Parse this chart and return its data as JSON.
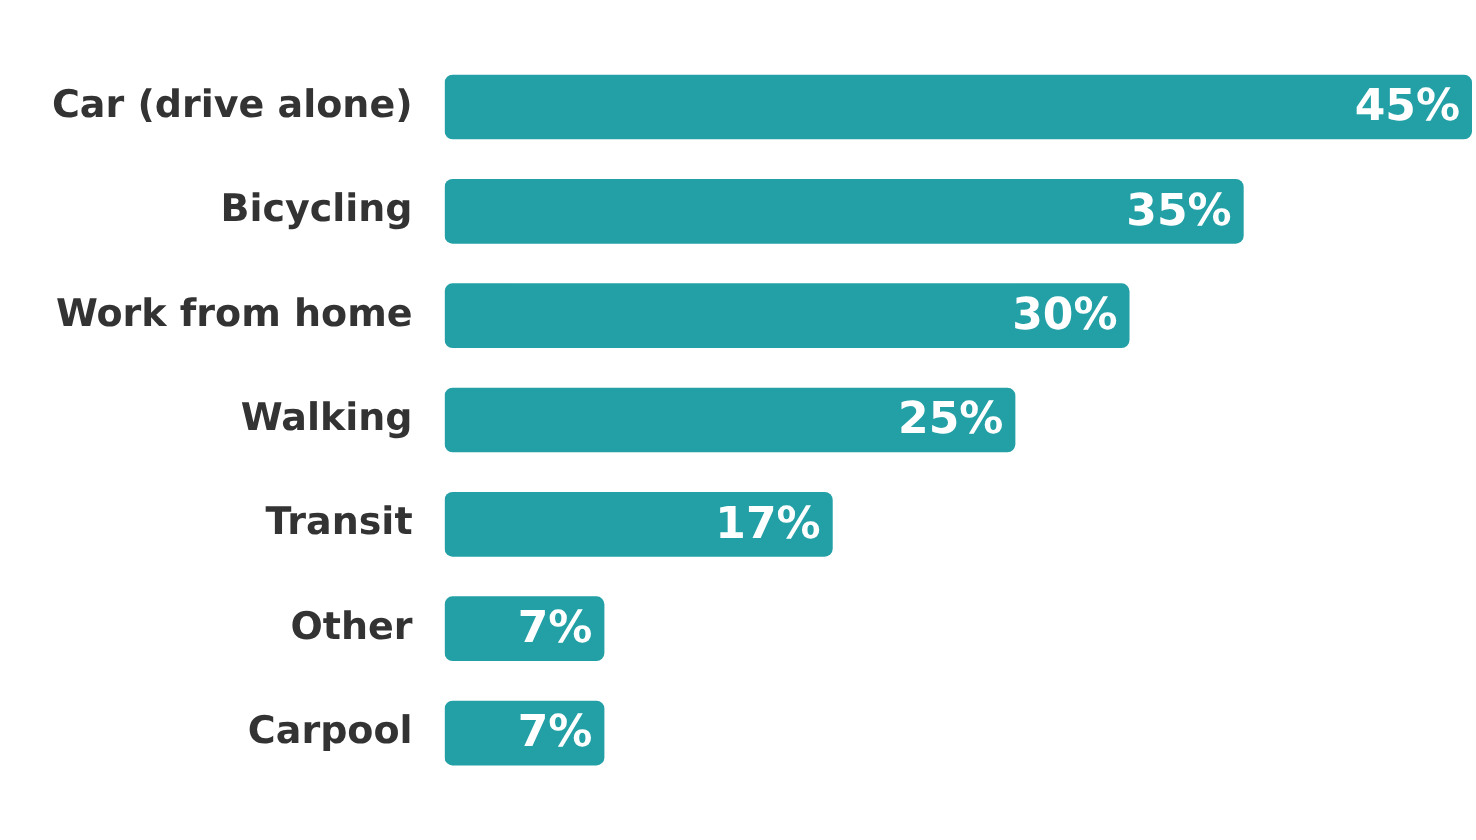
{
  "chart_data": {
    "type": "bar",
    "orientation": "horizontal",
    "categories": [
      "Car (drive alone)",
      "Bicycling",
      "Work from home",
      "Walking",
      "Transit",
      "Other",
      "Carpool"
    ],
    "values": [
      45,
      35,
      30,
      25,
      17,
      7,
      7
    ],
    "color": "#22a0a6",
    "value_labels": [
      "45%",
      "35%",
      "30%",
      "25%",
      "17%",
      "7%",
      "7%"
    ],
    "xlim": [
      0,
      45
    ],
    "tick_labels": "y",
    "legend": false
  }
}
